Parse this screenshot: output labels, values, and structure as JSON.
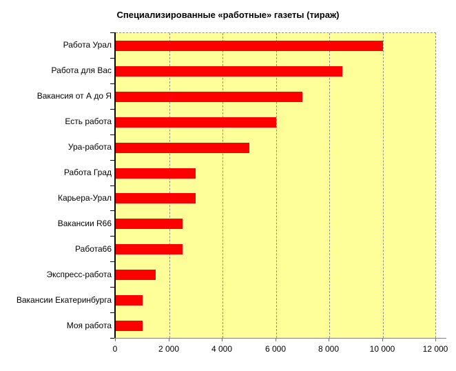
{
  "title": "Специализированные «работные» газеты (тираж)",
  "chart_data": {
    "type": "bar",
    "orientation": "horizontal",
    "title": "Специализированные «работные» газеты (тираж)",
    "categories": [
      "Работа Урал",
      "Работа для Вас",
      "Вакансия от А до Я",
      "Есть работа",
      "Ура-работа",
      "Работа Град",
      "Карьера-Урал",
      "Вакансии R66",
      "Работа66",
      "Экспресс-работа",
      "Вакансии Екатеринбурга",
      "Моя работа"
    ],
    "values": [
      10000,
      8500,
      7000,
      6000,
      5000,
      3000,
      3000,
      2500,
      2500,
      1500,
      1000,
      1000
    ],
    "xlabel": "",
    "ylabel": "",
    "xlim": [
      0,
      12000
    ],
    "xticks": [
      0,
      2000,
      4000,
      6000,
      8000,
      10000,
      12000
    ],
    "xtick_labels": [
      "0",
      "2 000",
      "4 000",
      "6 000",
      "8 000",
      "10 000",
      "12 000"
    ],
    "grid": true,
    "legend": false
  },
  "colors": {
    "bar": "#FF0000",
    "plot_bg": "#FFFF99",
    "grid": "#909090",
    "axis": "#000000",
    "baseline": "#808080",
    "text": "#000000",
    "page_bg": "#FFFFFF"
  }
}
